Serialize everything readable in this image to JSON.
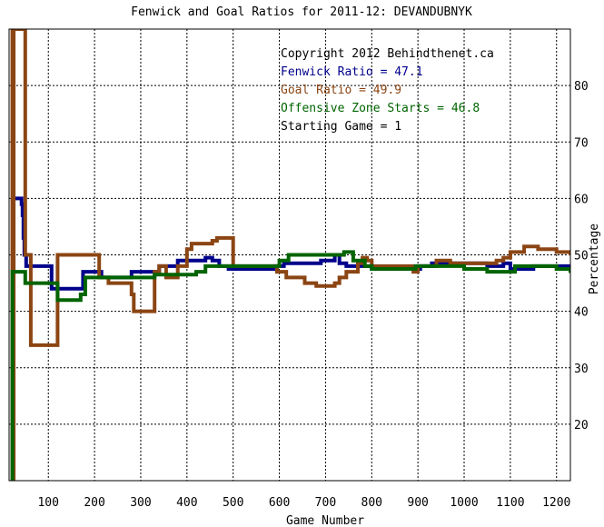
{
  "chart_data": {
    "type": "line",
    "title": "Fenwick and Goal Ratios for 2011-12: DEVANDUBNYK",
    "xlabel": "Game Number",
    "ylabel": "Percentage",
    "xlim": [
      15,
      1230
    ],
    "ylim": [
      10,
      90
    ],
    "xticks": [
      100,
      200,
      300,
      400,
      500,
      600,
      700,
      800,
      900,
      1000,
      1100,
      1200
    ],
    "yticks": [
      20,
      30,
      40,
      50,
      60,
      70,
      80
    ],
    "grid": true,
    "annotations": [
      {
        "text": "Copyright 2012 Behindthenet.ca",
        "color": "#000000"
      },
      {
        "text": "Fenwick Ratio = 47.1",
        "color": "#00008b"
      },
      {
        "text": "Goal Ratio = 49.9",
        "color": "#8b4513"
      },
      {
        "text": "Offensive Zone Starts = 46.8",
        "color": "#006400"
      },
      {
        "text": "Starting Game = 1",
        "color": "#000000"
      }
    ],
    "series": [
      {
        "name": "Fenwick Ratio",
        "color": "#00008b",
        "points": [
          [
            22,
            60
          ],
          [
            40,
            60
          ],
          [
            42,
            59
          ],
          [
            44,
            57
          ],
          [
            46,
            53
          ],
          [
            48,
            50
          ],
          [
            52,
            48
          ],
          [
            100,
            48
          ],
          [
            105,
            48
          ],
          [
            107,
            44
          ],
          [
            150,
            44
          ],
          [
            155,
            44
          ],
          [
            162,
            44
          ],
          [
            170,
            44
          ],
          [
            175,
            47
          ],
          [
            210,
            47
          ],
          [
            215,
            46
          ],
          [
            245,
            46
          ],
          [
            250,
            46
          ],
          [
            275,
            46
          ],
          [
            280,
            47
          ],
          [
            320,
            47
          ],
          [
            340,
            48
          ],
          [
            370,
            48
          ],
          [
            380,
            49
          ],
          [
            420,
            49
          ],
          [
            440,
            49.5
          ],
          [
            455,
            49
          ],
          [
            470,
            48
          ],
          [
            490,
            47.5
          ],
          [
            560,
            47.5
          ],
          [
            590,
            48
          ],
          [
            610,
            48.5
          ],
          [
            660,
            48.5
          ],
          [
            690,
            49
          ],
          [
            720,
            50
          ],
          [
            730,
            48.5
          ],
          [
            745,
            48
          ],
          [
            780,
            48
          ],
          [
            800,
            47.5
          ],
          [
            880,
            47.5
          ],
          [
            905,
            48
          ],
          [
            930,
            48.5
          ],
          [
            960,
            48.5
          ],
          [
            1000,
            48.5
          ],
          [
            1050,
            48
          ],
          [
            1075,
            48
          ],
          [
            1085,
            48.5
          ],
          [
            1100,
            47.5
          ],
          [
            1150,
            48
          ],
          [
            1195,
            48
          ],
          [
            1230,
            47.1
          ]
        ]
      },
      {
        "name": "Goal Ratio",
        "color": "#8b4513",
        "points": [
          [
            20,
            90
          ],
          [
            22,
            90
          ],
          [
            22,
            0
          ],
          [
            24,
            0
          ],
          [
            25,
            90
          ],
          [
            50,
            90
          ],
          [
            50,
            50
          ],
          [
            55,
            50
          ],
          [
            62,
            34
          ],
          [
            100,
            34
          ],
          [
            105,
            34
          ],
          [
            120,
            50
          ],
          [
            165,
            50
          ],
          [
            180,
            50
          ],
          [
            200,
            50
          ],
          [
            210,
            46
          ],
          [
            230,
            45
          ],
          [
            265,
            45
          ],
          [
            280,
            43
          ],
          [
            285,
            40
          ],
          [
            325,
            40
          ],
          [
            330,
            47
          ],
          [
            340,
            48
          ],
          [
            355,
            46
          ],
          [
            365,
            46
          ],
          [
            380,
            48
          ],
          [
            400,
            51
          ],
          [
            410,
            52
          ],
          [
            440,
            52
          ],
          [
            455,
            52.5
          ],
          [
            465,
            53
          ],
          [
            500,
            48
          ],
          [
            560,
            48
          ],
          [
            595,
            47
          ],
          [
            615,
            46
          ],
          [
            645,
            46
          ],
          [
            655,
            45
          ],
          [
            665,
            45
          ],
          [
            680,
            44.5
          ],
          [
            720,
            45
          ],
          [
            730,
            46
          ],
          [
            745,
            47
          ],
          [
            770,
            48.5
          ],
          [
            780,
            49.5
          ],
          [
            790,
            49
          ],
          [
            800,
            48
          ],
          [
            890,
            47
          ],
          [
            900,
            48
          ],
          [
            940,
            49
          ],
          [
            970,
            48.5
          ],
          [
            1060,
            48.5
          ],
          [
            1070,
            49
          ],
          [
            1085,
            49.5
          ],
          [
            1100,
            50.5
          ],
          [
            1130,
            51.5
          ],
          [
            1160,
            51
          ],
          [
            1200,
            50.5
          ],
          [
            1230,
            49.9
          ]
        ]
      },
      {
        "name": "Offensive Zone Starts",
        "color": "#006400",
        "points": [
          [
            22,
            0
          ],
          [
            22,
            47
          ],
          [
            45,
            47
          ],
          [
            50,
            45
          ],
          [
            100,
            45
          ],
          [
            110,
            45
          ],
          [
            120,
            42
          ],
          [
            160,
            42
          ],
          [
            170,
            43
          ],
          [
            180,
            46
          ],
          [
            200,
            46
          ],
          [
            245,
            46
          ],
          [
            260,
            46
          ],
          [
            300,
            46
          ],
          [
            330,
            46.5
          ],
          [
            380,
            46.5
          ],
          [
            400,
            46.5
          ],
          [
            420,
            47
          ],
          [
            440,
            48
          ],
          [
            480,
            48
          ],
          [
            500,
            48
          ],
          [
            560,
            48
          ],
          [
            600,
            49
          ],
          [
            620,
            50
          ],
          [
            670,
            50
          ],
          [
            700,
            50
          ],
          [
            740,
            50.5
          ],
          [
            760,
            49
          ],
          [
            785,
            48
          ],
          [
            800,
            47.5
          ],
          [
            880,
            47.5
          ],
          [
            895,
            48
          ],
          [
            930,
            48
          ],
          [
            1000,
            47.5
          ],
          [
            1050,
            47
          ],
          [
            1080,
            47
          ],
          [
            1110,
            48
          ],
          [
            1150,
            48
          ],
          [
            1200,
            47.5
          ],
          [
            1230,
            46.8
          ]
        ]
      }
    ]
  }
}
